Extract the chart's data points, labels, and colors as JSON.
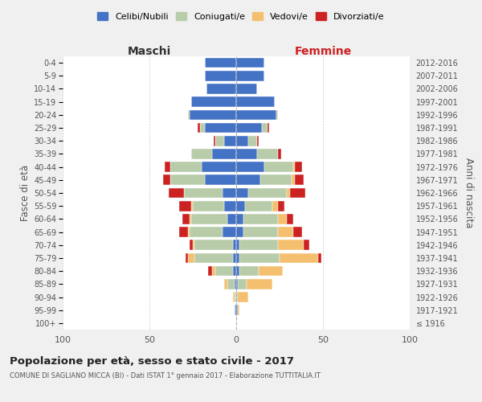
{
  "age_groups": [
    "100+",
    "95-99",
    "90-94",
    "85-89",
    "80-84",
    "75-79",
    "70-74",
    "65-69",
    "60-64",
    "55-59",
    "50-54",
    "45-49",
    "40-44",
    "35-39",
    "30-34",
    "25-29",
    "20-24",
    "15-19",
    "10-14",
    "5-9",
    "0-4"
  ],
  "birth_years": [
    "≤ 1916",
    "1917-1921",
    "1922-1926",
    "1927-1931",
    "1932-1936",
    "1937-1941",
    "1942-1946",
    "1947-1951",
    "1952-1956",
    "1957-1961",
    "1962-1966",
    "1967-1971",
    "1972-1976",
    "1977-1981",
    "1982-1986",
    "1987-1991",
    "1992-1996",
    "1997-2001",
    "2002-2006",
    "2007-2011",
    "2012-2016"
  ],
  "maschi": {
    "celibi": [
      0,
      1,
      0,
      1,
      2,
      2,
      2,
      8,
      5,
      7,
      8,
      18,
      20,
      14,
      7,
      18,
      27,
      26,
      17,
      18,
      18
    ],
    "coniugati": [
      0,
      0,
      1,
      4,
      10,
      22,
      22,
      19,
      21,
      18,
      22,
      20,
      18,
      12,
      5,
      3,
      1,
      0,
      0,
      0,
      0
    ],
    "vedovi": [
      0,
      0,
      1,
      2,
      2,
      4,
      1,
      1,
      1,
      1,
      0,
      0,
      0,
      0,
      0,
      0,
      0,
      0,
      0,
      0,
      0
    ],
    "divorziati": [
      0,
      0,
      0,
      0,
      2,
      1,
      2,
      5,
      4,
      7,
      9,
      4,
      3,
      0,
      1,
      1,
      0,
      0,
      0,
      0,
      0
    ]
  },
  "femmine": {
    "nubili": [
      0,
      1,
      0,
      1,
      2,
      2,
      2,
      4,
      4,
      5,
      7,
      14,
      16,
      12,
      7,
      15,
      23,
      22,
      12,
      16,
      16
    ],
    "coniugate": [
      0,
      0,
      1,
      5,
      11,
      23,
      22,
      20,
      20,
      16,
      22,
      18,
      17,
      12,
      5,
      3,
      1,
      0,
      0,
      0,
      0
    ],
    "vedove": [
      0,
      1,
      6,
      15,
      14,
      22,
      15,
      9,
      5,
      3,
      2,
      2,
      1,
      0,
      0,
      0,
      0,
      0,
      0,
      0,
      0
    ],
    "divorziate": [
      0,
      0,
      0,
      0,
      0,
      2,
      3,
      5,
      4,
      4,
      9,
      5,
      4,
      2,
      1,
      1,
      0,
      0,
      0,
      0,
      0
    ]
  },
  "colors": {
    "celibi": "#4472c4",
    "coniugati": "#b8ccaa",
    "vedovi": "#f4c06f",
    "divorziati": "#cc2222"
  },
  "xlim": 100,
  "title": "Popolazione per età, sesso e stato civile - 2017",
  "subtitle": "COMUNE DI SAGLIANO MICCA (BI) - Dati ISTAT 1° gennaio 2017 - Elaborazione TUTTITALIA.IT",
  "ylabel_left": "Fasce di età",
  "ylabel_right": "Anni di nascita",
  "xlabel_left": "Maschi",
  "xlabel_right": "Femmine",
  "bg_color": "#f0f0f0",
  "plot_bg": "#ffffff"
}
